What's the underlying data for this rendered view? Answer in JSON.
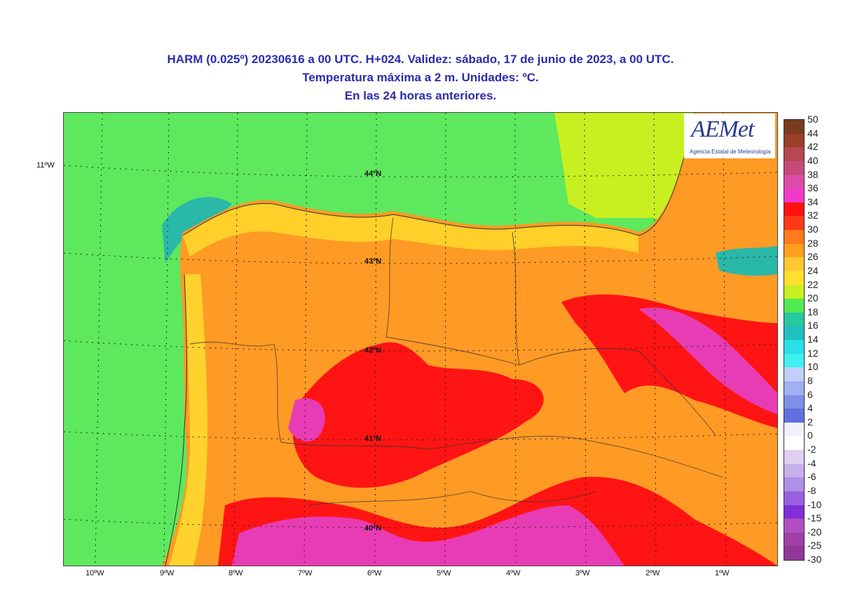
{
  "title": {
    "line1": "HARM (0.025º) 20230616 a 00 UTC. H+024. Validez: sábado, 17 de junio de 2023, a 00 UTC.",
    "line2": "Temperatura máxima a 2 m. Unidades: ºC.",
    "line3": "En las 24 horas anteriores."
  },
  "logo": {
    "name": "AEMet",
    "subtitle": "Agencia Estatal de Meteorología"
  },
  "corner_label": "11ºW",
  "lat_labels": [
    "44ºN",
    "43ºN",
    "42ºN",
    "41ºN",
    "40ºN"
  ],
  "lon_labels": [
    "10ºW",
    "9ºW",
    "8ºW",
    "7ºW",
    "6ºW",
    "5ºW",
    "4ºW",
    "3ºW",
    "2ºW",
    "1ºW"
  ],
  "colorbar": {
    "labels": [
      "50",
      "44",
      "42",
      "40",
      "38",
      "36",
      "34",
      "32",
      "30",
      "28",
      "26",
      "24",
      "22",
      "20",
      "18",
      "16",
      "14",
      "12",
      "10",
      "8",
      "6",
      "4",
      "2",
      "0",
      "-2",
      "-4",
      "-6",
      "-8",
      "-10",
      "-15",
      "-20",
      "-25",
      "-30"
    ],
    "colors": [
      "#7a3b1f",
      "#9b3f2a",
      "#b54850",
      "#c8487a",
      "#e04aa8",
      "#f23ac8",
      "#ff1010",
      "#ff3a1a",
      "#ff7a1a",
      "#ffa020",
      "#ffc830",
      "#ffe030",
      "#c8f020",
      "#52ea52",
      "#28c8a0",
      "#20c0c0",
      "#28e0e8",
      "#40f0f0",
      "#c0d0f8",
      "#a0b0f0",
      "#8090e8",
      "#6070e0",
      "#f0f0ff",
      "#ffffff",
      "#e0d0f0",
      "#c8b0ec",
      "#b090e6",
      "#9860de",
      "#8030d6",
      "#b050c0",
      "#a040a8",
      "#903898"
    ]
  }
}
